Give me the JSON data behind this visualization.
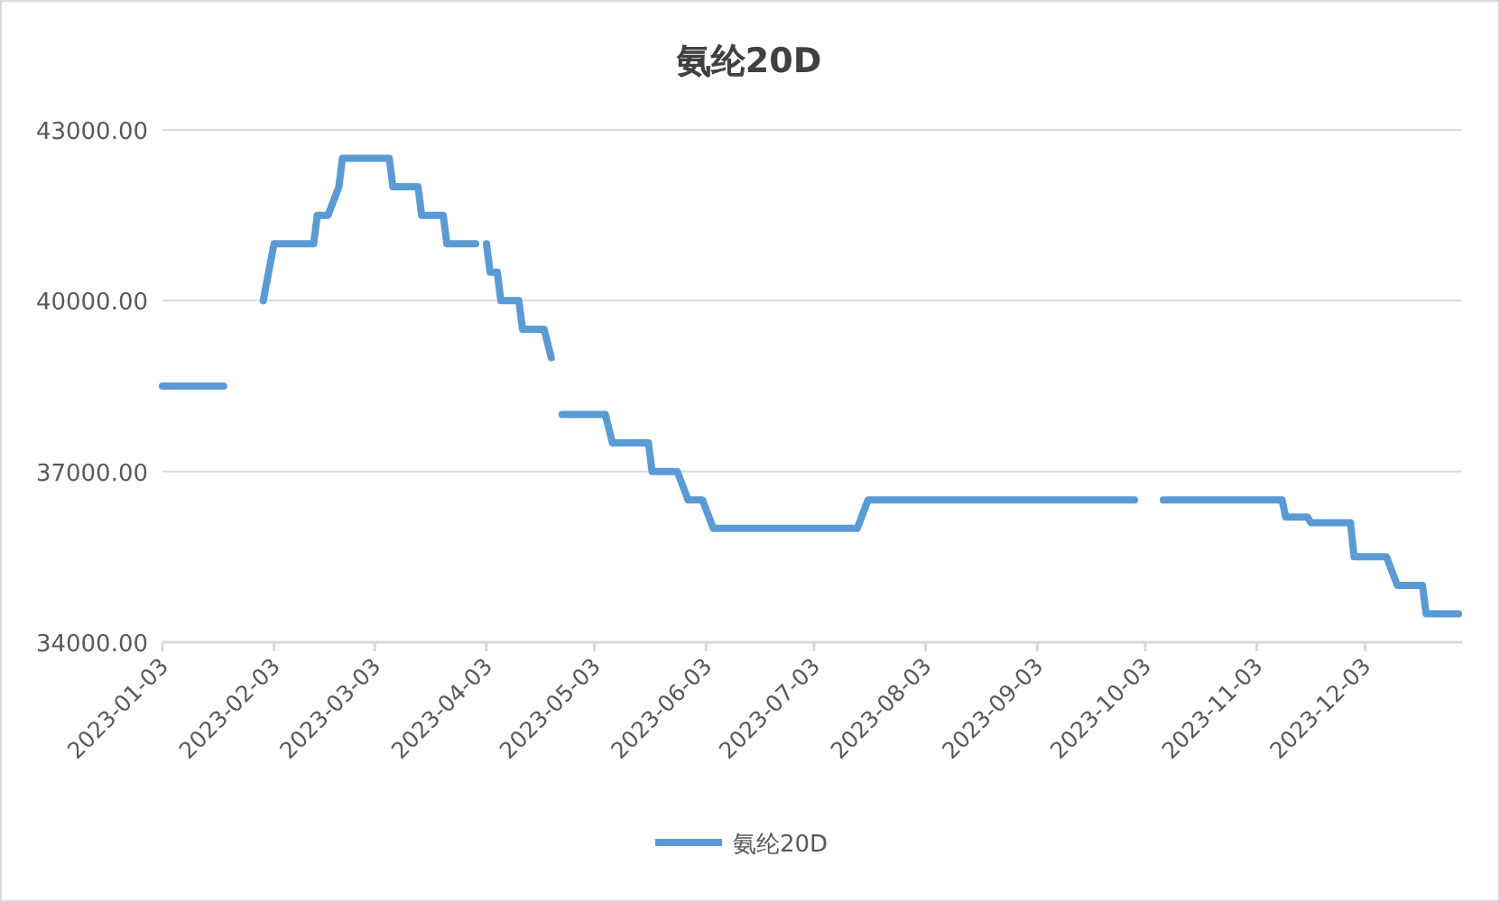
{
  "chart_data": {
    "type": "line",
    "title": "氨纶20D",
    "xlim": [
      "2023-01-03",
      "2023-12-30"
    ],
    "xticks": [
      "2023-01-03",
      "2023-02-03",
      "2023-03-03",
      "2023-04-03",
      "2023-05-03",
      "2023-06-03",
      "2023-07-03",
      "2023-08-03",
      "2023-09-03",
      "2023-10-03",
      "2023-11-03",
      "2023-12-03"
    ],
    "ylim": [
      34000,
      43000
    ],
    "yticks": [
      {
        "value": 34000,
        "label": "34000.00"
      },
      {
        "value": 37000,
        "label": "37000.00"
      },
      {
        "value": 40000,
        "label": "40000.00"
      },
      {
        "value": 43000,
        "label": "43000.00"
      }
    ],
    "grid": "y",
    "legend": "bottom",
    "marker": "none",
    "line_style": "solid",
    "series": [
      {
        "name": "氨纶20D",
        "color": "#5b9bd5",
        "x": [
          "2023-01-03",
          "2023-01-20",
          null,
          "2023-01-31",
          "2023-02-03",
          "2023-02-14",
          "2023-02-15",
          "2023-02-18",
          "2023-02-21",
          "2023-02-22",
          "2023-03-07",
          "2023-03-08",
          "2023-03-15",
          "2023-03-16",
          "2023-03-22",
          "2023-03-23",
          "2023-03-31",
          null,
          "2023-04-03",
          "2023-04-04",
          "2023-04-06",
          "2023-04-07",
          "2023-04-12",
          "2023-04-13",
          "2023-04-19",
          "2023-04-21",
          null,
          "2023-04-24",
          "2023-05-06",
          "2023-05-08",
          "2023-05-18",
          "2023-05-19",
          "2023-05-26",
          "2023-05-29",
          "2023-06-02",
          "2023-06-05",
          "2023-07-15",
          "2023-07-18",
          "2023-09-30",
          null,
          "2023-10-08",
          "2023-11-10",
          "2023-11-11",
          "2023-11-17",
          "2023-11-18",
          "2023-11-29",
          "2023-11-30",
          "2023-12-09",
          "2023-12-12",
          "2023-12-19",
          "2023-12-20",
          "2023-12-29"
        ],
        "values": [
          38500,
          38500,
          null,
          40000,
          41000,
          41000,
          41500,
          41500,
          42000,
          42500,
          42500,
          42000,
          42000,
          41500,
          41500,
          41000,
          41000,
          null,
          41000,
          40500,
          40500,
          40000,
          40000,
          39500,
          39500,
          39000,
          null,
          38000,
          38000,
          37500,
          37500,
          37000,
          37000,
          36500,
          36500,
          36000,
          36000,
          36500,
          36500,
          null,
          36500,
          36500,
          36200,
          36200,
          36100,
          36100,
          35500,
          35500,
          35000,
          35000,
          34500,
          34500
        ]
      }
    ]
  }
}
